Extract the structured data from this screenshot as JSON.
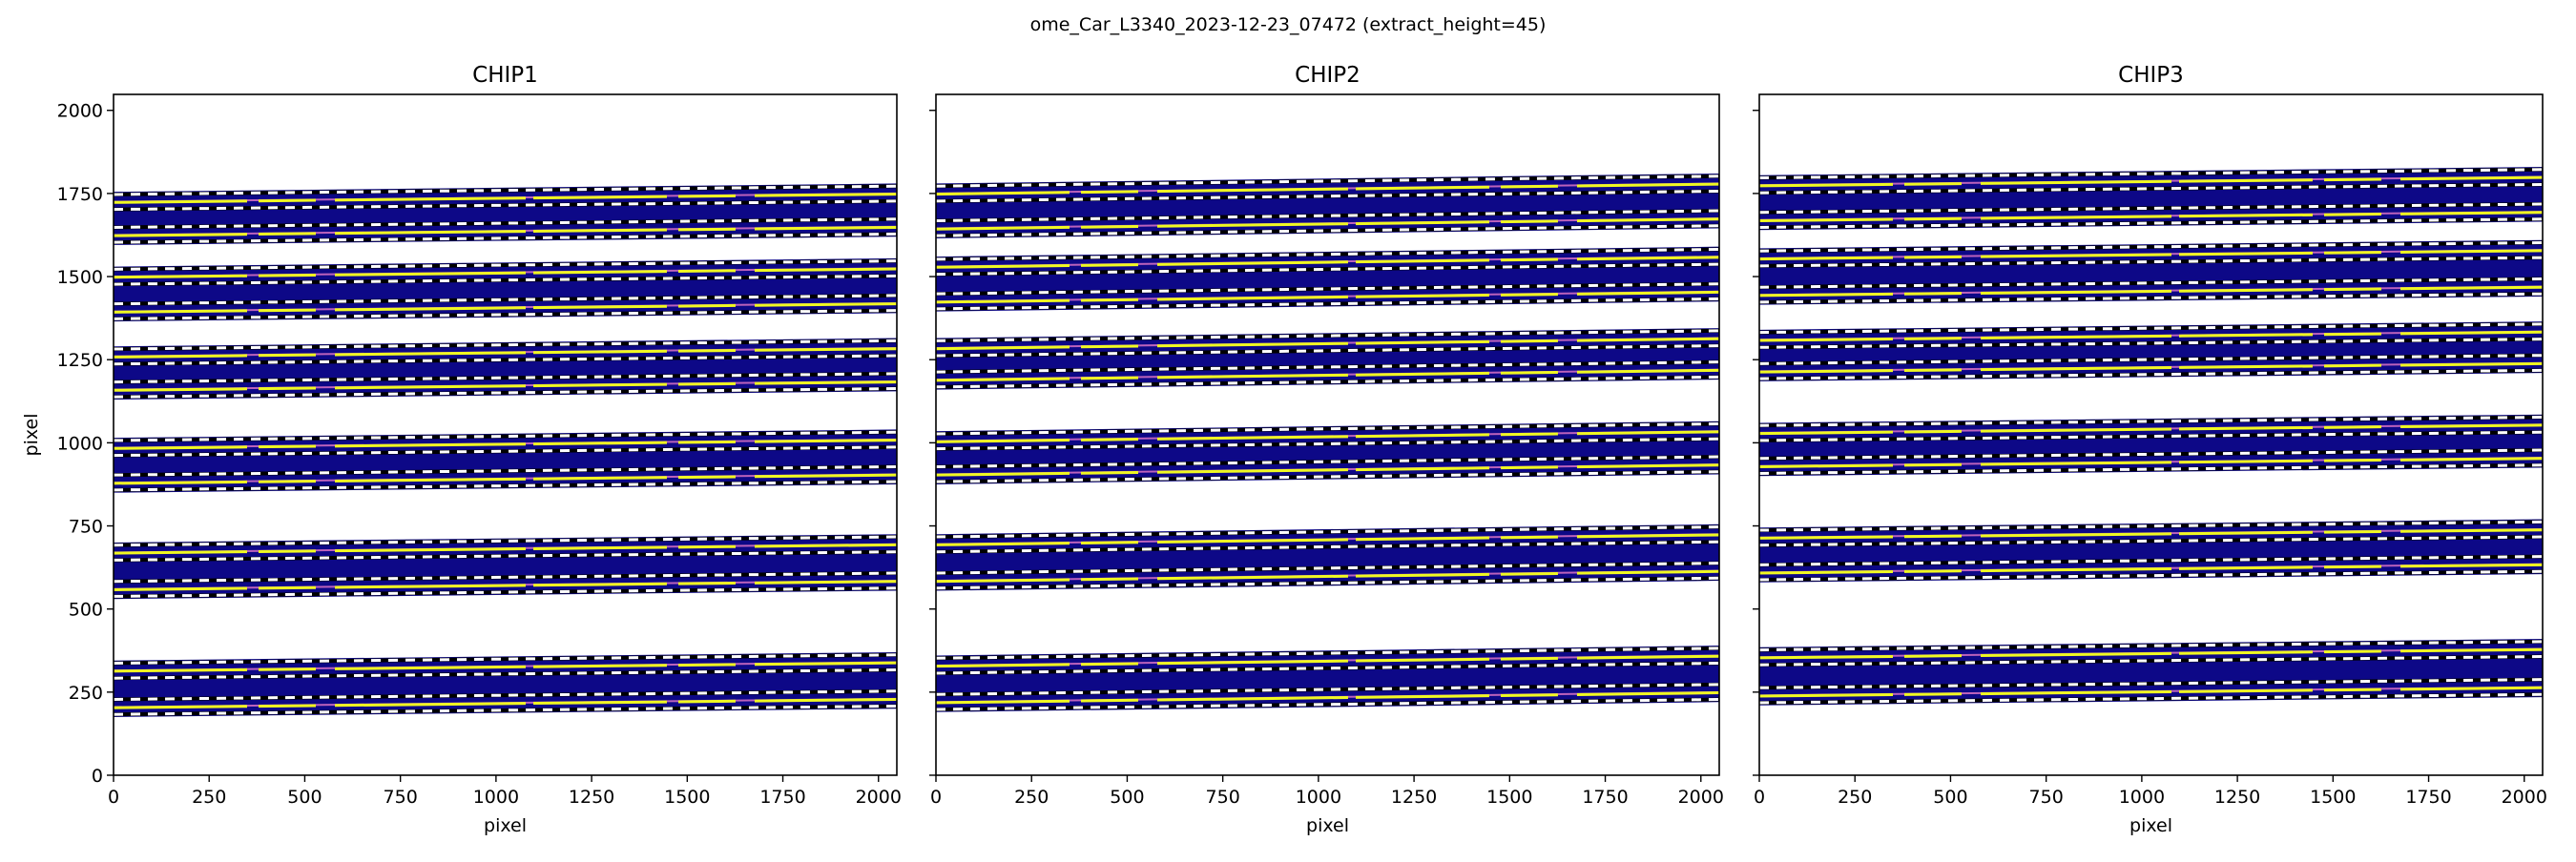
{
  "suptitle": "ome_Car_L3340_2023-12-23_07472  (extract_height=45)",
  "colors": {
    "band": "#0d0887",
    "spectrum": "#f0f921",
    "trace_center": "#e879c9",
    "edge_black": "#000000",
    "edge_white": "#ffffff"
  },
  "chart_data": [
    {
      "type": "heatmap",
      "title": "CHIP1",
      "xlabel": "pixel",
      "ylabel": "pixel",
      "xlim": [
        0,
        2048
      ],
      "ylim": [
        0,
        2048
      ],
      "xticks": [
        "0",
        "250",
        "500",
        "750",
        "1000",
        "1250",
        "1500",
        "1750",
        "2000"
      ],
      "yticks": [
        "0",
        "250",
        "500",
        "750",
        "1000",
        "1250",
        "1500",
        "1750",
        "2000"
      ],
      "slope_over_chip": 25,
      "orders": [
        [
          1595,
          1755
        ],
        [
          1365,
          1530
        ],
        [
          1130,
          1290
        ],
        [
          850,
          1015
        ],
        [
          530,
          700
        ],
        [
          175,
          345
        ]
      ]
    },
    {
      "type": "heatmap",
      "title": "CHIP2",
      "xlabel": "pixel",
      "ylabel": "",
      "xlim": [
        0,
        2048
      ],
      "ylim": [
        0,
        2048
      ],
      "xticks": [
        "0",
        "250",
        "500",
        "750",
        "1000",
        "1250",
        "1500",
        "1750",
        "2000"
      ],
      "yticks": [],
      "slope_over_chip": 30,
      "orders": [
        [
          1615,
          1780
        ],
        [
          1395,
          1560
        ],
        [
          1160,
          1315
        ],
        [
          875,
          1035
        ],
        [
          555,
          725
        ],
        [
          190,
          360
        ]
      ]
    },
    {
      "type": "heatmap",
      "title": "CHIP3",
      "xlabel": "pixel",
      "ylabel": "",
      "xlim": [
        0,
        2048
      ],
      "ylim": [
        0,
        2048
      ],
      "xticks": [
        "0",
        "250",
        "500",
        "750",
        "1000",
        "1250",
        "1500",
        "1750",
        "2000"
      ],
      "yticks": [],
      "slope_over_chip": 25,
      "orders": [
        [
          1640,
          1805
        ],
        [
          1415,
          1585
        ],
        [
          1185,
          1340
        ],
        [
          900,
          1060
        ],
        [
          580,
          745
        ],
        [
          210,
          385
        ]
      ]
    }
  ]
}
